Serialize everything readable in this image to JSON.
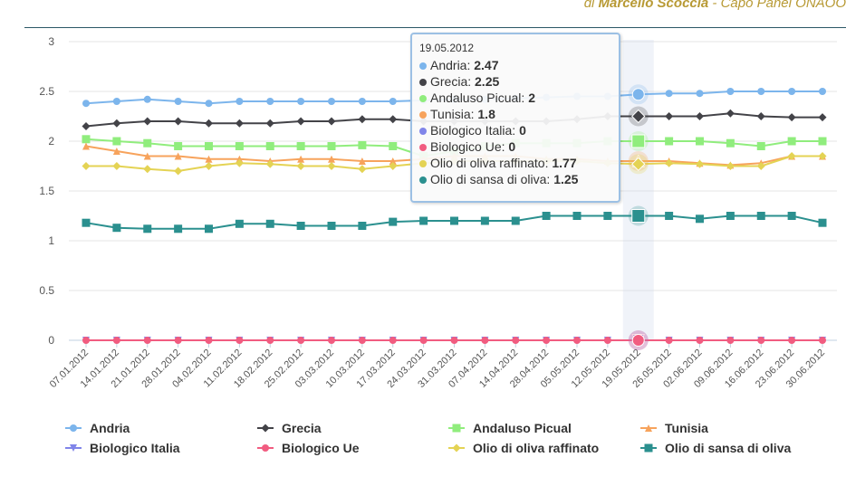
{
  "header": {
    "prefix": "di ",
    "author": "Marcello Scoccia",
    "suffix": " - Capo Panel ONAOO"
  },
  "chart_data": {
    "type": "line",
    "categories": [
      "07.01.2012",
      "14.01.2012",
      "21.01.2012",
      "28.01.2012",
      "04.02.2012",
      "11.02.2012",
      "18.02.2012",
      "25.02.2012",
      "03.03.2012",
      "10.03.2012",
      "17.03.2012",
      "24.03.2012",
      "31.03.2012",
      "07.04.2012",
      "14.04.2012",
      "28.04.2012",
      "05.05.2012",
      "12.05.2012",
      "19.05.2012",
      "26.05.2012",
      "02.06.2012",
      "09.06.2012",
      "16.06.2012",
      "23.06.2012",
      "30.06.2012"
    ],
    "ylim": [
      0,
      3
    ],
    "yticks": [
      "0",
      "0.5",
      "1",
      "1.5",
      "2",
      "2.5",
      "3"
    ],
    "grid": true,
    "legend_position": "bottom",
    "highlight_index": 18,
    "series": [
      {
        "name": "Andria",
        "color": "#7cb5ec",
        "marker": "circle",
        "values": [
          2.38,
          2.4,
          2.42,
          2.4,
          2.38,
          2.4,
          2.4,
          2.4,
          2.4,
          2.4,
          2.4,
          2.41,
          2.42,
          2.42,
          2.43,
          2.44,
          2.45,
          2.45,
          2.47,
          2.48,
          2.48,
          2.5,
          2.5,
          2.5,
          2.5
        ]
      },
      {
        "name": "Grecia",
        "color": "#434348",
        "marker": "diamond",
        "values": [
          2.15,
          2.18,
          2.2,
          2.2,
          2.18,
          2.18,
          2.18,
          2.2,
          2.2,
          2.22,
          2.22,
          2.2,
          2.2,
          2.2,
          2.2,
          2.2,
          2.22,
          2.25,
          2.25,
          2.25,
          2.25,
          2.28,
          2.25,
          2.24,
          2.24
        ]
      },
      {
        "name": "Andaluso Picual",
        "color": "#90ed7d",
        "marker": "square",
        "values": [
          2.02,
          2.0,
          1.98,
          1.95,
          1.95,
          1.95,
          1.95,
          1.95,
          1.95,
          1.96,
          1.95,
          1.85,
          1.9,
          1.95,
          1.98,
          1.98,
          1.98,
          2.0,
          2.0,
          2.0,
          2.0,
          1.98,
          1.95,
          2.0,
          2.0
        ]
      },
      {
        "name": "Tunisia",
        "color": "#f7a35c",
        "marker": "triangle",
        "values": [
          1.95,
          1.9,
          1.85,
          1.85,
          1.82,
          1.82,
          1.8,
          1.82,
          1.82,
          1.8,
          1.8,
          1.82,
          1.85,
          1.85,
          1.85,
          1.82,
          1.82,
          1.8,
          1.8,
          1.8,
          1.78,
          1.76,
          1.78,
          1.85,
          1.85
        ]
      },
      {
        "name": "Biologico Italia",
        "color": "#8085e9",
        "marker": "triangle-down",
        "values": [
          0,
          0,
          0,
          0,
          0,
          0,
          0,
          0,
          0,
          0,
          0,
          0,
          0,
          0,
          0,
          0,
          0,
          0,
          0,
          0,
          0,
          0,
          0,
          0,
          0
        ]
      },
      {
        "name": "Biologico Ue",
        "color": "#f15c80",
        "marker": "circle",
        "values": [
          0,
          0,
          0,
          0,
          0,
          0,
          0,
          0,
          0,
          0,
          0,
          0,
          0,
          0,
          0,
          0,
          0,
          0,
          0,
          0,
          0,
          0,
          0,
          0,
          0
        ]
      },
      {
        "name": "Olio di oliva raffinato",
        "color": "#e4d354",
        "marker": "diamond",
        "values": [
          1.75,
          1.75,
          1.72,
          1.7,
          1.75,
          1.78,
          1.77,
          1.75,
          1.75,
          1.72,
          1.75,
          1.78,
          1.8,
          1.8,
          1.8,
          1.8,
          1.8,
          1.78,
          1.77,
          1.78,
          1.77,
          1.75,
          1.75,
          1.85,
          1.85
        ]
      },
      {
        "name": "Olio di sansa di oliva",
        "color": "#2b908f",
        "marker": "square",
        "values": [
          1.18,
          1.13,
          1.12,
          1.12,
          1.12,
          1.17,
          1.17,
          1.15,
          1.15,
          1.15,
          1.19,
          1.2,
          1.2,
          1.2,
          1.2,
          1.25,
          1.25,
          1.25,
          1.25,
          1.25,
          1.22,
          1.25,
          1.25,
          1.25,
          1.18
        ]
      }
    ],
    "tooltip": {
      "date": "19.05.2012",
      "rows": [
        {
          "label": "Andria",
          "value": "2.47",
          "color": "#7cb5ec"
        },
        {
          "label": "Grecia",
          "value": "2.25",
          "color": "#434348"
        },
        {
          "label": "Andaluso Picual",
          "value": "2",
          "color": "#90ed7d"
        },
        {
          "label": "Tunisia",
          "value": "1.8",
          "color": "#f7a35c"
        },
        {
          "label": "Biologico Italia",
          "value": "0",
          "color": "#8085e9"
        },
        {
          "label": "Biologico Ue",
          "value": "0",
          "color": "#f15c80"
        },
        {
          "label": "Olio di oliva raffinato",
          "value": "1.77",
          "color": "#e4d354"
        },
        {
          "label": "Olio di sansa di oliva",
          "value": "1.25",
          "color": "#2b908f"
        }
      ]
    }
  }
}
